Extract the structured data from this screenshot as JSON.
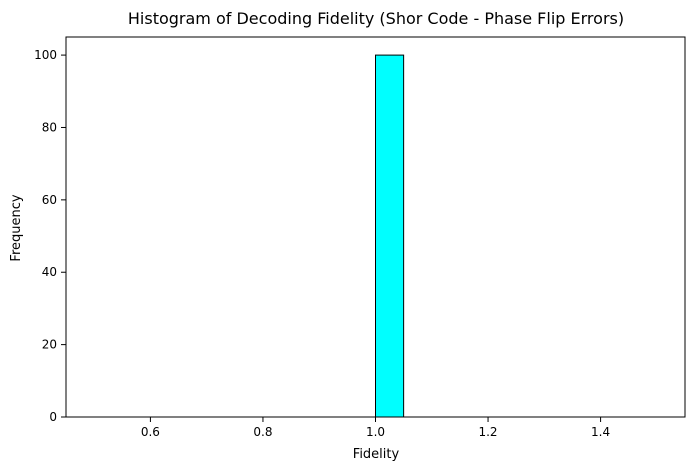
{
  "chart_data": {
    "type": "bar",
    "title": "Histogram of Decoding Fidelity (Shor Code - Phase Flip Errors)",
    "xlabel": "Fidelity",
    "ylabel": "Frequency",
    "xlim": [
      0.45,
      1.55
    ],
    "ylim": [
      0,
      105
    ],
    "xticks": [
      0.6,
      0.8,
      1.0,
      1.2,
      1.4
    ],
    "xtick_labels": [
      "0.6",
      "0.8",
      "1.0",
      "1.2",
      "1.4"
    ],
    "yticks": [
      0,
      20,
      40,
      60,
      80,
      100
    ],
    "ytick_labels": [
      "0",
      "20",
      "40",
      "60",
      "80",
      "100"
    ],
    "bins": [
      [
        0.5,
        0.55
      ],
      [
        0.55,
        0.6
      ],
      [
        0.6,
        0.65
      ],
      [
        0.65,
        0.7
      ],
      [
        0.7,
        0.75
      ],
      [
        0.75,
        0.8
      ],
      [
        0.8,
        0.85
      ],
      [
        0.85,
        0.9
      ],
      [
        0.9,
        0.95
      ],
      [
        0.95,
        1.0
      ],
      [
        1.0,
        1.05
      ],
      [
        1.05,
        1.1
      ],
      [
        1.1,
        1.15
      ],
      [
        1.15,
        1.2
      ],
      [
        1.2,
        1.25
      ],
      [
        1.25,
        1.3
      ],
      [
        1.3,
        1.35
      ],
      [
        1.35,
        1.4
      ],
      [
        1.4,
        1.45
      ],
      [
        1.45,
        1.5
      ]
    ],
    "values": [
      0,
      0,
      0,
      0,
      0,
      0,
      0,
      0,
      0,
      0,
      100,
      0,
      0,
      0,
      0,
      0,
      0,
      0,
      0,
      0
    ],
    "bar_color": "#00ffff",
    "edge_color": "#000000",
    "grid": false,
    "legend": "none"
  }
}
